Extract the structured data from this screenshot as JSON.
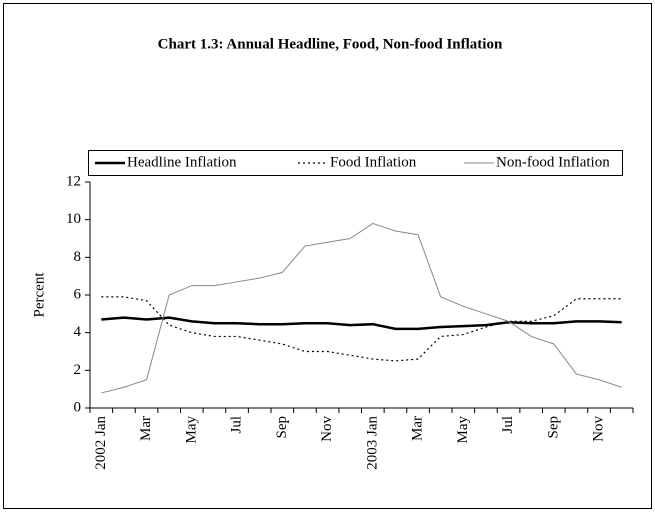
{
  "chart_data": {
    "type": "line",
    "title": "Chart 1.3: Annual Headline, Food, Non-food Inflation",
    "y_label": "Percent",
    "categories": [
      "2002 Jan",
      null,
      "Mar",
      null,
      "May",
      null,
      "Jul",
      null,
      "Sep",
      null,
      "Nov",
      null,
      "2003 Jan",
      null,
      "Mar",
      null,
      "May",
      null,
      "Jul",
      null,
      "Sep",
      null,
      "Nov",
      null
    ],
    "series": [
      {
        "name": "Headline Inflation",
        "color": "#000000",
        "line_width": 2.5,
        "line_style": "solid",
        "values": [
          4.7,
          4.8,
          4.7,
          4.8,
          4.6,
          4.5,
          4.5,
          4.45,
          4.45,
          4.5,
          4.5,
          4.4,
          4.45,
          4.2,
          4.2,
          4.3,
          4.35,
          4.4,
          4.55,
          4.5,
          4.5,
          4.6,
          4.6,
          4.55
        ]
      },
      {
        "name": "Food Inflation",
        "color": "#000000",
        "line_width": 1.2,
        "line_style": "dotted",
        "values": [
          5.9,
          5.9,
          5.7,
          4.4,
          4.0,
          3.8,
          3.8,
          3.6,
          3.4,
          3.0,
          3.0,
          2.8,
          2.6,
          2.5,
          2.6,
          3.8,
          3.9,
          4.3,
          4.6,
          4.6,
          4.9,
          5.8,
          5.8,
          5.8
        ]
      },
      {
        "name": "Non-food Inflation",
        "color": "#888888",
        "line_width": 1,
        "line_style": "solid",
        "values": [
          0.8,
          1.1,
          1.5,
          6.0,
          6.5,
          6.5,
          6.7,
          6.9,
          7.2,
          8.6,
          8.8,
          9.0,
          9.8,
          9.4,
          9.2,
          5.9,
          5.4,
          5.0,
          4.6,
          3.8,
          3.4,
          1.8,
          1.5,
          1.1
        ]
      }
    ],
    "ylim": [
      0,
      12
    ],
    "yticks": [
      0,
      2,
      4,
      6,
      8,
      10,
      12
    ],
    "grid": false,
    "legend": "top"
  }
}
